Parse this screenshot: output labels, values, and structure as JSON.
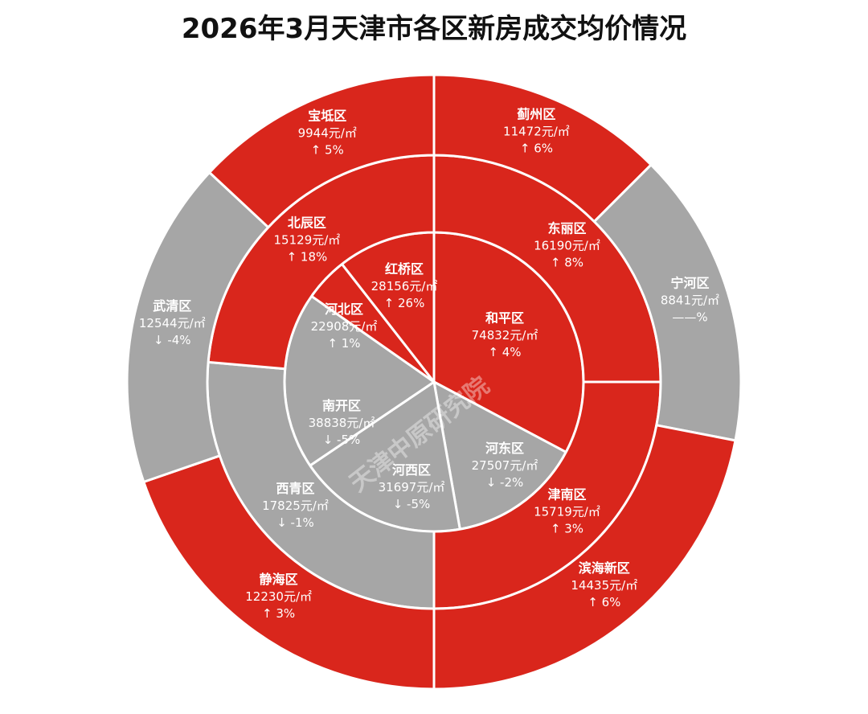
{
  "chart_data": {
    "type": "pie",
    "title": "2026年3月天津市各区新房成交均价情况",
    "unit": "元/㎡",
    "watermark": "天津中原研究院",
    "colors": {
      "up": "#d9261c",
      "down": "#a6a6a6",
      "separator": "#ffffff"
    },
    "rings": [
      {
        "name": "inner",
        "segments": [
          {
            "district": "和平区",
            "price": "74832",
            "change": "↑ 4%",
            "trend": "up",
            "start": 0,
            "end": 118
          },
          {
            "district": "河东区",
            "price": "27507",
            "change": "↓ -2%",
            "trend": "down",
            "start": 118,
            "end": 170
          },
          {
            "district": "河西区",
            "price": "31697",
            "change": "↓ -5%",
            "trend": "down",
            "start": 170,
            "end": 236
          },
          {
            "district": "南开区",
            "price": "38838",
            "change": "↓ -5%",
            "trend": "down",
            "start": 236,
            "end": 305
          },
          {
            "district": "河北区",
            "price": "22908",
            "change": "↑ 1%",
            "trend": "up",
            "start": 305,
            "end": 322
          },
          {
            "district": "红桥区",
            "price": "28156",
            "change": "↑ 26%",
            "trend": "up",
            "start": 322,
            "end": 360
          }
        ]
      },
      {
        "name": "middle",
        "segments": [
          {
            "district": "东丽区",
            "price": "16190",
            "change": "↑ 8%",
            "trend": "up",
            "start": 0,
            "end": 90
          },
          {
            "district": "津南区",
            "price": "15719",
            "change": "↑ 3%",
            "trend": "up",
            "start": 90,
            "end": 180
          },
          {
            "district": "西青区",
            "price": "17825",
            "change": "↓ -1%",
            "trend": "down",
            "start": 180,
            "end": 275
          },
          {
            "district": "北辰区",
            "price": "15129",
            "change": "↑ 18%",
            "trend": "up",
            "start": 275,
            "end": 360
          }
        ]
      },
      {
        "name": "outer",
        "segments": [
          {
            "district": "蓟州区",
            "price": "11472",
            "change": "↑ 6%",
            "trend": "up",
            "start": 0,
            "end": 45
          },
          {
            "district": "宁河区",
            "price": "8841",
            "change": "——%",
            "trend": "down",
            "start": 45,
            "end": 101
          },
          {
            "district": "滨海新区",
            "price": "14435",
            "change": "↑ 6%",
            "trend": "up",
            "start": 101,
            "end": 180
          },
          {
            "district": "静海区",
            "price": "12230",
            "change": "↑ 3%",
            "trend": "up",
            "start": 180,
            "end": 251
          },
          {
            "district": "武清区",
            "price": "12544",
            "change": "↓ -4%",
            "trend": "down",
            "start": 251,
            "end": 313
          },
          {
            "district": "宝坻区",
            "price": "9944",
            "change": "↑ 5%",
            "trend": "up",
            "start": 313,
            "end": 360
          }
        ]
      }
    ]
  }
}
